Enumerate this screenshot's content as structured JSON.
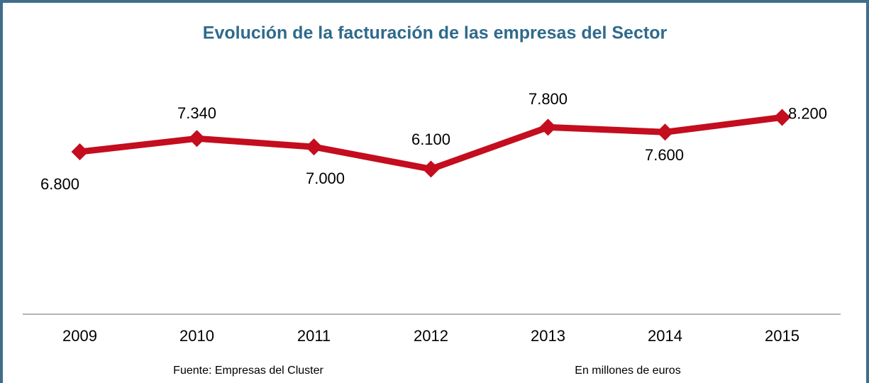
{
  "chart_data": {
    "type": "line",
    "title": "Evolución de la facturación de las empresas del Sector",
    "categories": [
      "2009",
      "2010",
      "2011",
      "2012",
      "2013",
      "2014",
      "2015"
    ],
    "series": [
      {
        "color": "#c40d1e",
        "values": [
          6800,
          7340,
          7000,
          6100,
          7800,
          7600,
          8200
        ],
        "value_labels": [
          "6.800",
          "7.340",
          "7.000",
          "6.100",
          "7.800",
          "7.600",
          "8.200"
        ]
      }
    ],
    "ylim": [
      0,
      10000
    ],
    "source": "Fuente: Empresas del Cluster",
    "units": "En millones de euros"
  }
}
